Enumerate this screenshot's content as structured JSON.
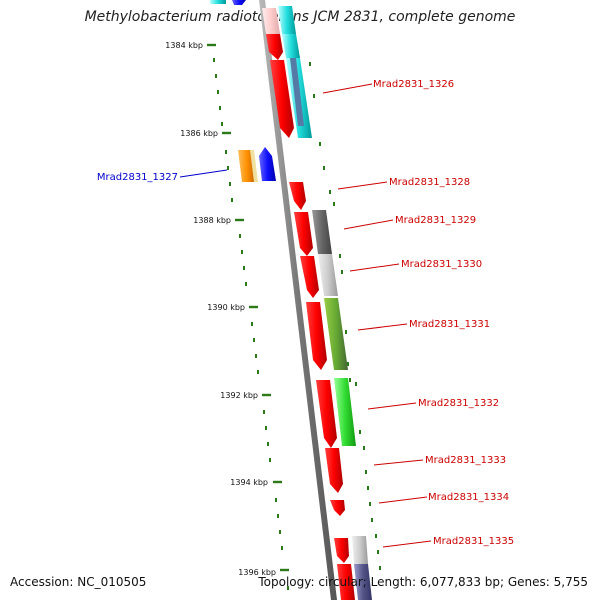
{
  "title": "Methylobacterium radiotolerans JCM 2831, complete genome",
  "accession_text": "Accession: NC_010505",
  "topology_text": "Topology: circular; Length: 6,077,833 bp; Genes: 5,755",
  "ticks": [
    "1384 kbp",
    "1386 kbp",
    "1388 kbp",
    "1390 kbp",
    "1392 kbp",
    "1394 kbp",
    "1396 kbp"
  ],
  "gene_labels_right": [
    "Mrad2831_1326",
    "Mrad2831_1328",
    "Mrad2831_1329",
    "Mrad2831_1330",
    "Mrad2831_1331",
    "Mrad2831_1332",
    "Mrad2831_1333",
    "Mrad2831_1334",
    "Mrad2831_1335"
  ],
  "gene_labels_left": [
    "Mrad2831_1327"
  ],
  "colors": {
    "label_red": "#cc0000",
    "label_blue": "#0000cc",
    "dots": "#2a7a1a",
    "backbone": "#808080"
  }
}
